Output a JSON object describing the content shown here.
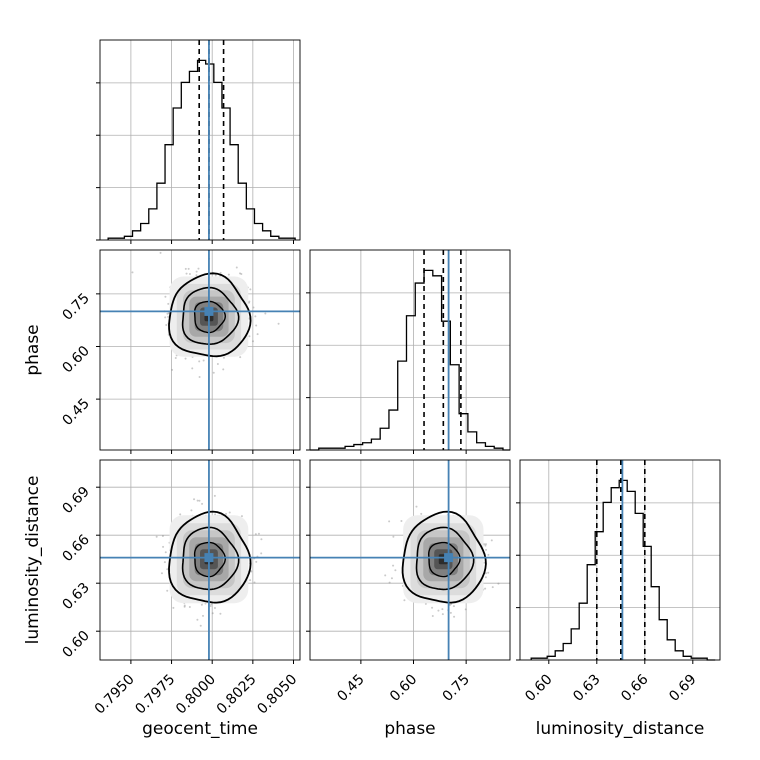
{
  "chart_data": {
    "type": "corner",
    "parameters": [
      "geocent_time",
      "phase",
      "luminosity_distance"
    ],
    "truths": {
      "geocent_time": 0.7998,
      "phase": 0.7,
      "luminosity_distance": 0.646
    },
    "colors": {
      "truth": "#4682b4",
      "hist": "#000000",
      "grid": "#b0b0b0",
      "scatter": "#8a8a8a"
    },
    "grid": true,
    "ranges": {
      "geocent_time": [
        0.7931,
        0.8054
      ],
      "phase": [
        0.305,
        0.875
      ],
      "luminosity_distance": [
        0.582,
        0.707
      ]
    },
    "ticks": {
      "geocent_time": {
        "values": [
          0.795,
          0.7975,
          0.8,
          0.8025,
          0.805
        ],
        "labels": [
          "0.7950",
          "0.7975",
          "0.8000",
          "0.8025",
          "0.8050"
        ]
      },
      "phase": {
        "values": [
          0.45,
          0.6,
          0.75
        ],
        "labels": [
          "0.45",
          "0.60",
          "0.75"
        ]
      },
      "luminosity_distance": {
        "values": [
          0.6,
          0.63,
          0.66,
          0.69
        ],
        "labels": [
          "0.60",
          "0.63",
          "0.66",
          "0.69"
        ]
      }
    },
    "quantiles": {
      "geocent_time": [
        0.7992,
        0.7998,
        0.8007
      ],
      "phase": [
        0.63,
        0.685,
        0.735
      ],
      "luminosity_distance": [
        0.63,
        0.645,
        0.66
      ]
    },
    "histograms": {
      "geocent_time": {
        "edges": [
          0.7936,
          0.7941,
          0.7946,
          0.7951,
          0.7956,
          0.7961,
          0.7966,
          0.7971,
          0.7976,
          0.7981,
          0.7986,
          0.7991,
          0.7996,
          0.8001,
          0.8006,
          0.8011,
          0.8016,
          0.8021,
          0.8026,
          0.8031,
          0.8036,
          0.8041,
          0.8046,
          0.8051
        ],
        "counts": [
          1,
          1,
          2,
          5,
          9,
          17,
          31,
          52,
          72,
          86,
          92,
          98,
          96,
          86,
          72,
          52,
          31,
          17,
          9,
          5,
          2,
          1,
          1
        ]
      },
      "phase": {
        "edges": [
          0.305,
          0.33,
          0.355,
          0.38,
          0.405,
          0.43,
          0.455,
          0.48,
          0.505,
          0.53,
          0.555,
          0.58,
          0.605,
          0.63,
          0.655,
          0.68,
          0.705,
          0.73,
          0.755,
          0.78,
          0.805,
          0.83,
          0.855,
          0.875
        ],
        "counts": [
          0,
          1,
          1,
          1,
          2,
          3,
          4,
          6,
          12,
          22,
          49,
          74,
          92,
          99,
          96,
          71,
          47,
          20,
          10,
          4,
          2,
          1,
          0
        ]
      },
      "luminosity_distance": {
        "edges": [
          0.589,
          0.594,
          0.599,
          0.604,
          0.609,
          0.614,
          0.619,
          0.624,
          0.629,
          0.634,
          0.639,
          0.644,
          0.649,
          0.654,
          0.659,
          0.664,
          0.669,
          0.674,
          0.679,
          0.684,
          0.689,
          0.694,
          0.699,
          0.704
        ],
        "counts": [
          1,
          1,
          2,
          5,
          9,
          17,
          31,
          52,
          70,
          86,
          94,
          98,
          92,
          80,
          62,
          40,
          22,
          11,
          5,
          2,
          1,
          1,
          0
        ]
      }
    },
    "posterior": {
      "geocent_time": {
        "mean": 0.7998,
        "sd": 0.0011
      },
      "phase": {
        "mean": 0.685,
        "sd": 0.052
      },
      "luminosity_distance": {
        "mean": 0.645,
        "sd": 0.0125
      }
    }
  }
}
